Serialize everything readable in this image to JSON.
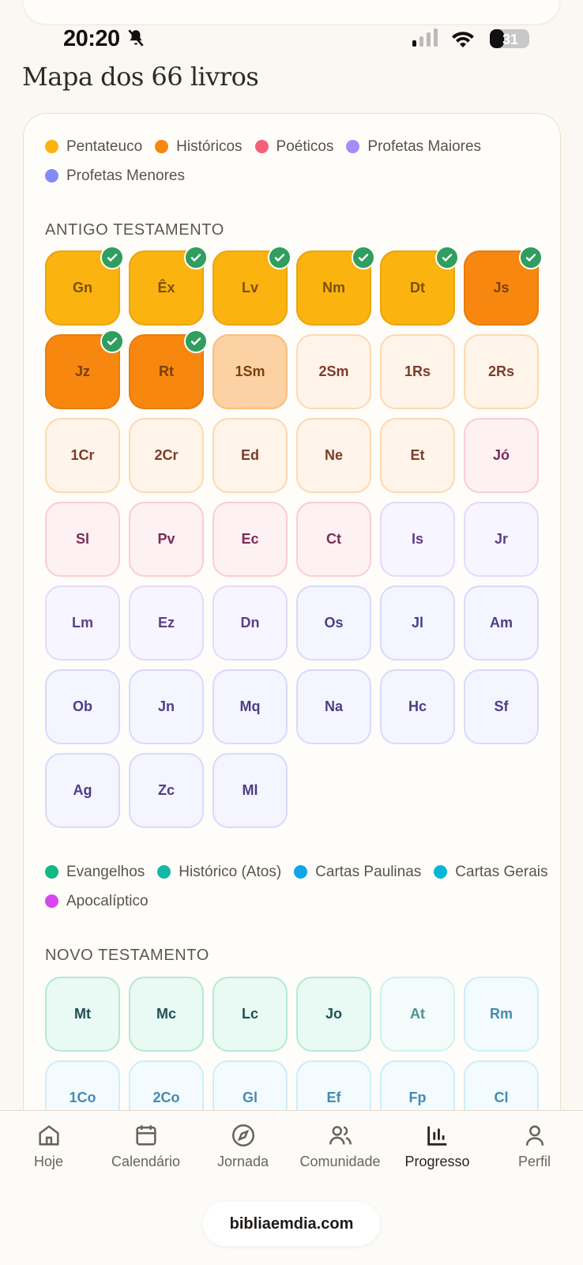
{
  "status_bar": {
    "time": "20:20",
    "battery": "31"
  },
  "header": {
    "title": "Mapa dos 66 livros"
  },
  "old_testament": {
    "heading": "ANTIGO TESTAMENTO",
    "groups": [
      {
        "name": "Pentateuco",
        "color": "#fbb40f",
        "books": [
          {
            "label": "Gn",
            "status": "read"
          },
          {
            "label": "Êx",
            "status": "read"
          },
          {
            "label": "Lv",
            "status": "read"
          },
          {
            "label": "Nm",
            "status": "read"
          },
          {
            "label": "Dt",
            "status": "read"
          }
        ]
      },
      {
        "name": "Históricos",
        "color": "#f7870f",
        "books": [
          {
            "label": "Js",
            "status": "read"
          },
          {
            "label": "Jz",
            "status": "read"
          },
          {
            "label": "Rt",
            "status": "read"
          },
          {
            "label": "1Sm",
            "status": "reading"
          },
          {
            "label": "2Sm",
            "status": "unread"
          },
          {
            "label": "1Rs",
            "status": "unread"
          },
          {
            "label": "2Rs",
            "status": "unread"
          },
          {
            "label": "1Cr",
            "status": "unread"
          },
          {
            "label": "2Cr",
            "status": "unread"
          },
          {
            "label": "Ed",
            "status": "unread"
          },
          {
            "label": "Ne",
            "status": "unread"
          },
          {
            "label": "Et",
            "status": "unread"
          }
        ]
      },
      {
        "name": "Poéticos",
        "color": "#f4607a",
        "books": [
          {
            "label": "Jó",
            "status": "unread"
          },
          {
            "label": "Sl",
            "status": "unread"
          },
          {
            "label": "Pv",
            "status": "unread"
          },
          {
            "label": "Ec",
            "status": "unread"
          },
          {
            "label": "Ct",
            "status": "unread"
          }
        ]
      },
      {
        "name": "Profetas Maiores",
        "color": "#a78bfa",
        "books": [
          {
            "label": "Is",
            "status": "unread"
          },
          {
            "label": "Jr",
            "status": "unread"
          },
          {
            "label": "Lm",
            "status": "unread"
          },
          {
            "label": "Ez",
            "status": "unread"
          },
          {
            "label": "Dn",
            "status": "unread"
          }
        ]
      },
      {
        "name": "Profetas Menores",
        "color": "#818cf8",
        "books": [
          {
            "label": "Os",
            "status": "unread"
          },
          {
            "label": "Jl",
            "status": "unread"
          },
          {
            "label": "Am",
            "status": "unread"
          },
          {
            "label": "Ob",
            "status": "unread"
          },
          {
            "label": "Jn",
            "status": "unread"
          },
          {
            "label": "Mq",
            "status": "unread"
          },
          {
            "label": "Na",
            "status": "unread"
          },
          {
            "label": "Hc",
            "status": "unread"
          },
          {
            "label": "Sf",
            "status": "unread"
          },
          {
            "label": "Ag",
            "status": "unread"
          },
          {
            "label": "Zc",
            "status": "unread"
          },
          {
            "label": "Ml",
            "status": "unread"
          }
        ]
      }
    ]
  },
  "new_testament": {
    "heading": "NOVO TESTAMENTO",
    "groups": [
      {
        "name": "Evangelhos",
        "color": "#10b981",
        "books": [
          {
            "label": "Mt",
            "status": "unread"
          },
          {
            "label": "Mc",
            "status": "unread"
          },
          {
            "label": "Lc",
            "status": "unread"
          },
          {
            "label": "Jo",
            "status": "unread"
          }
        ]
      },
      {
        "name": "Histórico (Atos)",
        "color": "#14b8a6",
        "books": [
          {
            "label": "At",
            "status": "muted"
          }
        ]
      },
      {
        "name": "Cartas Paulinas",
        "color": "#0ea5e9",
        "books": [
          {
            "label": "Rm",
            "status": "muted"
          },
          {
            "label": "1Co",
            "status": "muted"
          },
          {
            "label": "2Co",
            "status": "muted"
          },
          {
            "label": "Gl",
            "status": "muted"
          },
          {
            "label": "Ef",
            "status": "muted"
          },
          {
            "label": "Fp",
            "status": "muted"
          },
          {
            "label": "Cl",
            "status": "muted"
          }
        ]
      },
      {
        "name": "Cartas Gerais",
        "color": "#06b6d4",
        "books": []
      },
      {
        "name": "Apocalíptico",
        "color": "#d946ef",
        "books": []
      }
    ]
  },
  "nav": {
    "items": [
      {
        "label": "Hoje",
        "active": false
      },
      {
        "label": "Calendário",
        "active": false
      },
      {
        "label": "Jornada",
        "active": false
      },
      {
        "label": "Comunidade",
        "active": false
      },
      {
        "label": "Progresso",
        "active": true
      },
      {
        "label": "Perfil",
        "active": false
      }
    ]
  },
  "footer": {
    "url": "bibliaemdia.com"
  }
}
